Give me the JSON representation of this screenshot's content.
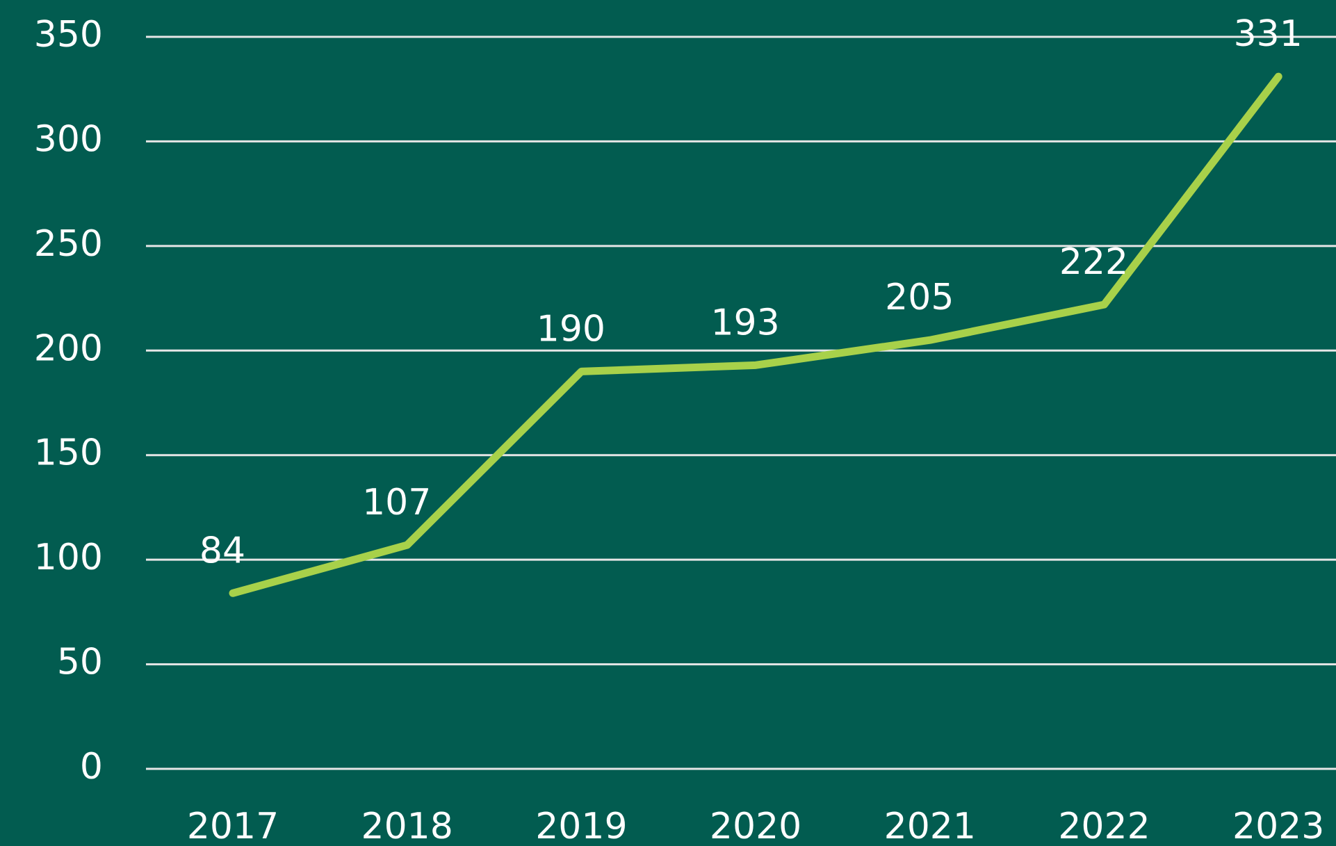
{
  "chart_data": {
    "type": "line",
    "categories": [
      "2017",
      "2018",
      "2019",
      "2020",
      "2021",
      "2022",
      "2023"
    ],
    "series": [
      {
        "color": "#a8d14a",
        "values": [
          84,
          107,
          190,
          193,
          205,
          222,
          331
        ]
      }
    ],
    "ylim": [
      0,
      350
    ],
    "yticks": [
      0,
      50,
      100,
      150,
      200,
      250,
      300,
      350
    ],
    "grid": true,
    "background": "#025c50"
  }
}
